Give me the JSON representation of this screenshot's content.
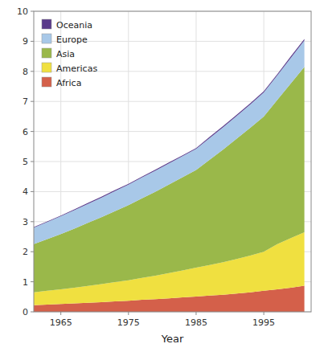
{
  "chart_data": {
    "type": "area",
    "stacked": true,
    "x": [
      1961,
      1963,
      1965,
      1967,
      1969,
      1971,
      1973,
      1975,
      1977,
      1979,
      1981,
      1983,
      1985,
      1987,
      1989,
      1991,
      1993,
      1995,
      1997,
      1999,
      2001
    ],
    "series": [
      {
        "name": "Africa",
        "color": "#d4604a",
        "values": [
          0.22,
          0.24,
          0.26,
          0.28,
          0.3,
          0.32,
          0.35,
          0.37,
          0.4,
          0.42,
          0.45,
          0.48,
          0.51,
          0.54,
          0.57,
          0.61,
          0.65,
          0.7,
          0.75,
          0.8,
          0.87
        ]
      },
      {
        "name": "Americas",
        "color": "#f0e040",
        "values": [
          0.43,
          0.46,
          0.49,
          0.52,
          0.56,
          0.6,
          0.64,
          0.68,
          0.73,
          0.78,
          0.84,
          0.9,
          0.96,
          1.02,
          1.08,
          1.15,
          1.22,
          1.3,
          1.5,
          1.65,
          1.78
        ]
      },
      {
        "name": "Asia",
        "color": "#9ab84a",
        "values": [
          1.6,
          1.72,
          1.84,
          1.97,
          2.1,
          2.23,
          2.36,
          2.5,
          2.65,
          2.8,
          2.95,
          3.1,
          3.25,
          3.5,
          3.75,
          4.0,
          4.25,
          4.5,
          4.8,
          5.15,
          5.5
        ]
      },
      {
        "name": "Europe",
        "color": "#a8c8e8",
        "values": [
          0.55,
          0.57,
          0.59,
          0.61,
          0.63,
          0.65,
          0.67,
          0.68,
          0.69,
          0.7,
          0.7,
          0.7,
          0.7,
          0.72,
          0.74,
          0.76,
          0.78,
          0.8,
          0.82,
          0.85,
          0.88
        ]
      },
      {
        "name": "Oceania",
        "color": "#5a3a8a",
        "values": [
          0.02,
          0.02,
          0.02,
          0.03,
          0.03,
          0.03,
          0.03,
          0.03,
          0.03,
          0.03,
          0.03,
          0.03,
          0.03,
          0.04,
          0.04,
          0.04,
          0.04,
          0.04,
          0.04,
          0.05,
          0.05
        ]
      }
    ],
    "xlabel": "Year",
    "xlim": [
      1961,
      2002
    ],
    "xticks": [
      1965,
      1975,
      1985,
      1995
    ],
    "ylim": [
      0,
      10
    ],
    "yticks": [
      0,
      1,
      2,
      3,
      4,
      5,
      6,
      7,
      8,
      9,
      10
    ],
    "grid": true,
    "legend": "upper left"
  }
}
